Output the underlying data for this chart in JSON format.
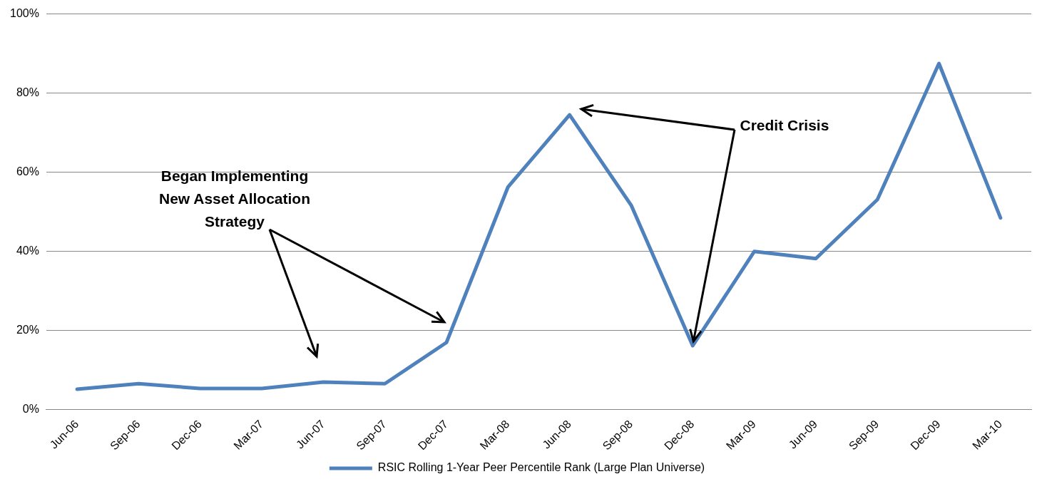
{
  "chart_data": {
    "type": "line",
    "categories": [
      "Jun-06",
      "Sep-06",
      "Dec-06",
      "Mar-07",
      "Jun-07",
      "Sep-07",
      "Dec-07",
      "Mar-08",
      "Jun-08",
      "Sep-08",
      "Dec-08",
      "Mar-09",
      "Jun-09",
      "Sep-09",
      "Dec-09",
      "Mar-10"
    ],
    "series": [
      {
        "name": "RSIC Rolling 1-Year Peer Percentile Rank (Large Plan Universe)",
        "color": "#4f81bd",
        "values": [
          5.2,
          6.6,
          5.4,
          5.4,
          7.0,
          6.6,
          17.0,
          56.3,
          74.5,
          51.7,
          16.2,
          40.0,
          38.2,
          53.1,
          87.5,
          48.5
        ]
      }
    ],
    "ylim": [
      0,
      100
    ],
    "yticks": [
      {
        "value": 0,
        "label": "0%"
      },
      {
        "value": 20,
        "label": "20%"
      },
      {
        "value": 40,
        "label": "40%"
      },
      {
        "value": 60,
        "label": "60%"
      },
      {
        "value": 80,
        "label": "80%"
      },
      {
        "value": 100,
        "label": "100%"
      }
    ],
    "grid": "y",
    "legend": "bottom",
    "marker": "none",
    "line_style": "solid",
    "annotations": [
      "Began Implementing\nNew Asset Allocation\nStrategy",
      {
        "text": "Credit Crisis",
        "x": "Dec-08",
        "y": 16.2
      }
    ]
  }
}
